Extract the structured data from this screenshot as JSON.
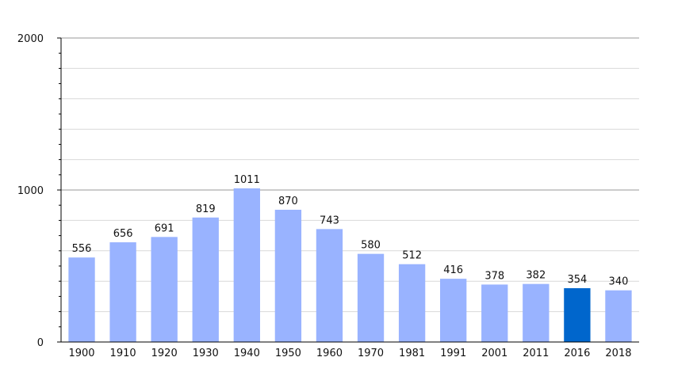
{
  "chart_data": {
    "type": "bar",
    "categories": [
      "1900",
      "1910",
      "1920",
      "1930",
      "1940",
      "1950",
      "1960",
      "1970",
      "1981",
      "1991",
      "2001",
      "2011",
      "2016",
      "2018"
    ],
    "values": [
      556,
      656,
      691,
      819,
      1011,
      870,
      743,
      580,
      512,
      416,
      378,
      382,
      354,
      340
    ],
    "highlight_index": 12,
    "ylim": [
      0,
      2000
    ],
    "yticks": [
      "0",
      "1000",
      "2000"
    ],
    "grid": true,
    "colors": {
      "bar": "#99b3ff",
      "highlight": "#0066cc",
      "gridline": "#d9d9d9",
      "major_gridline": "#999999",
      "axis": "#000000"
    }
  }
}
